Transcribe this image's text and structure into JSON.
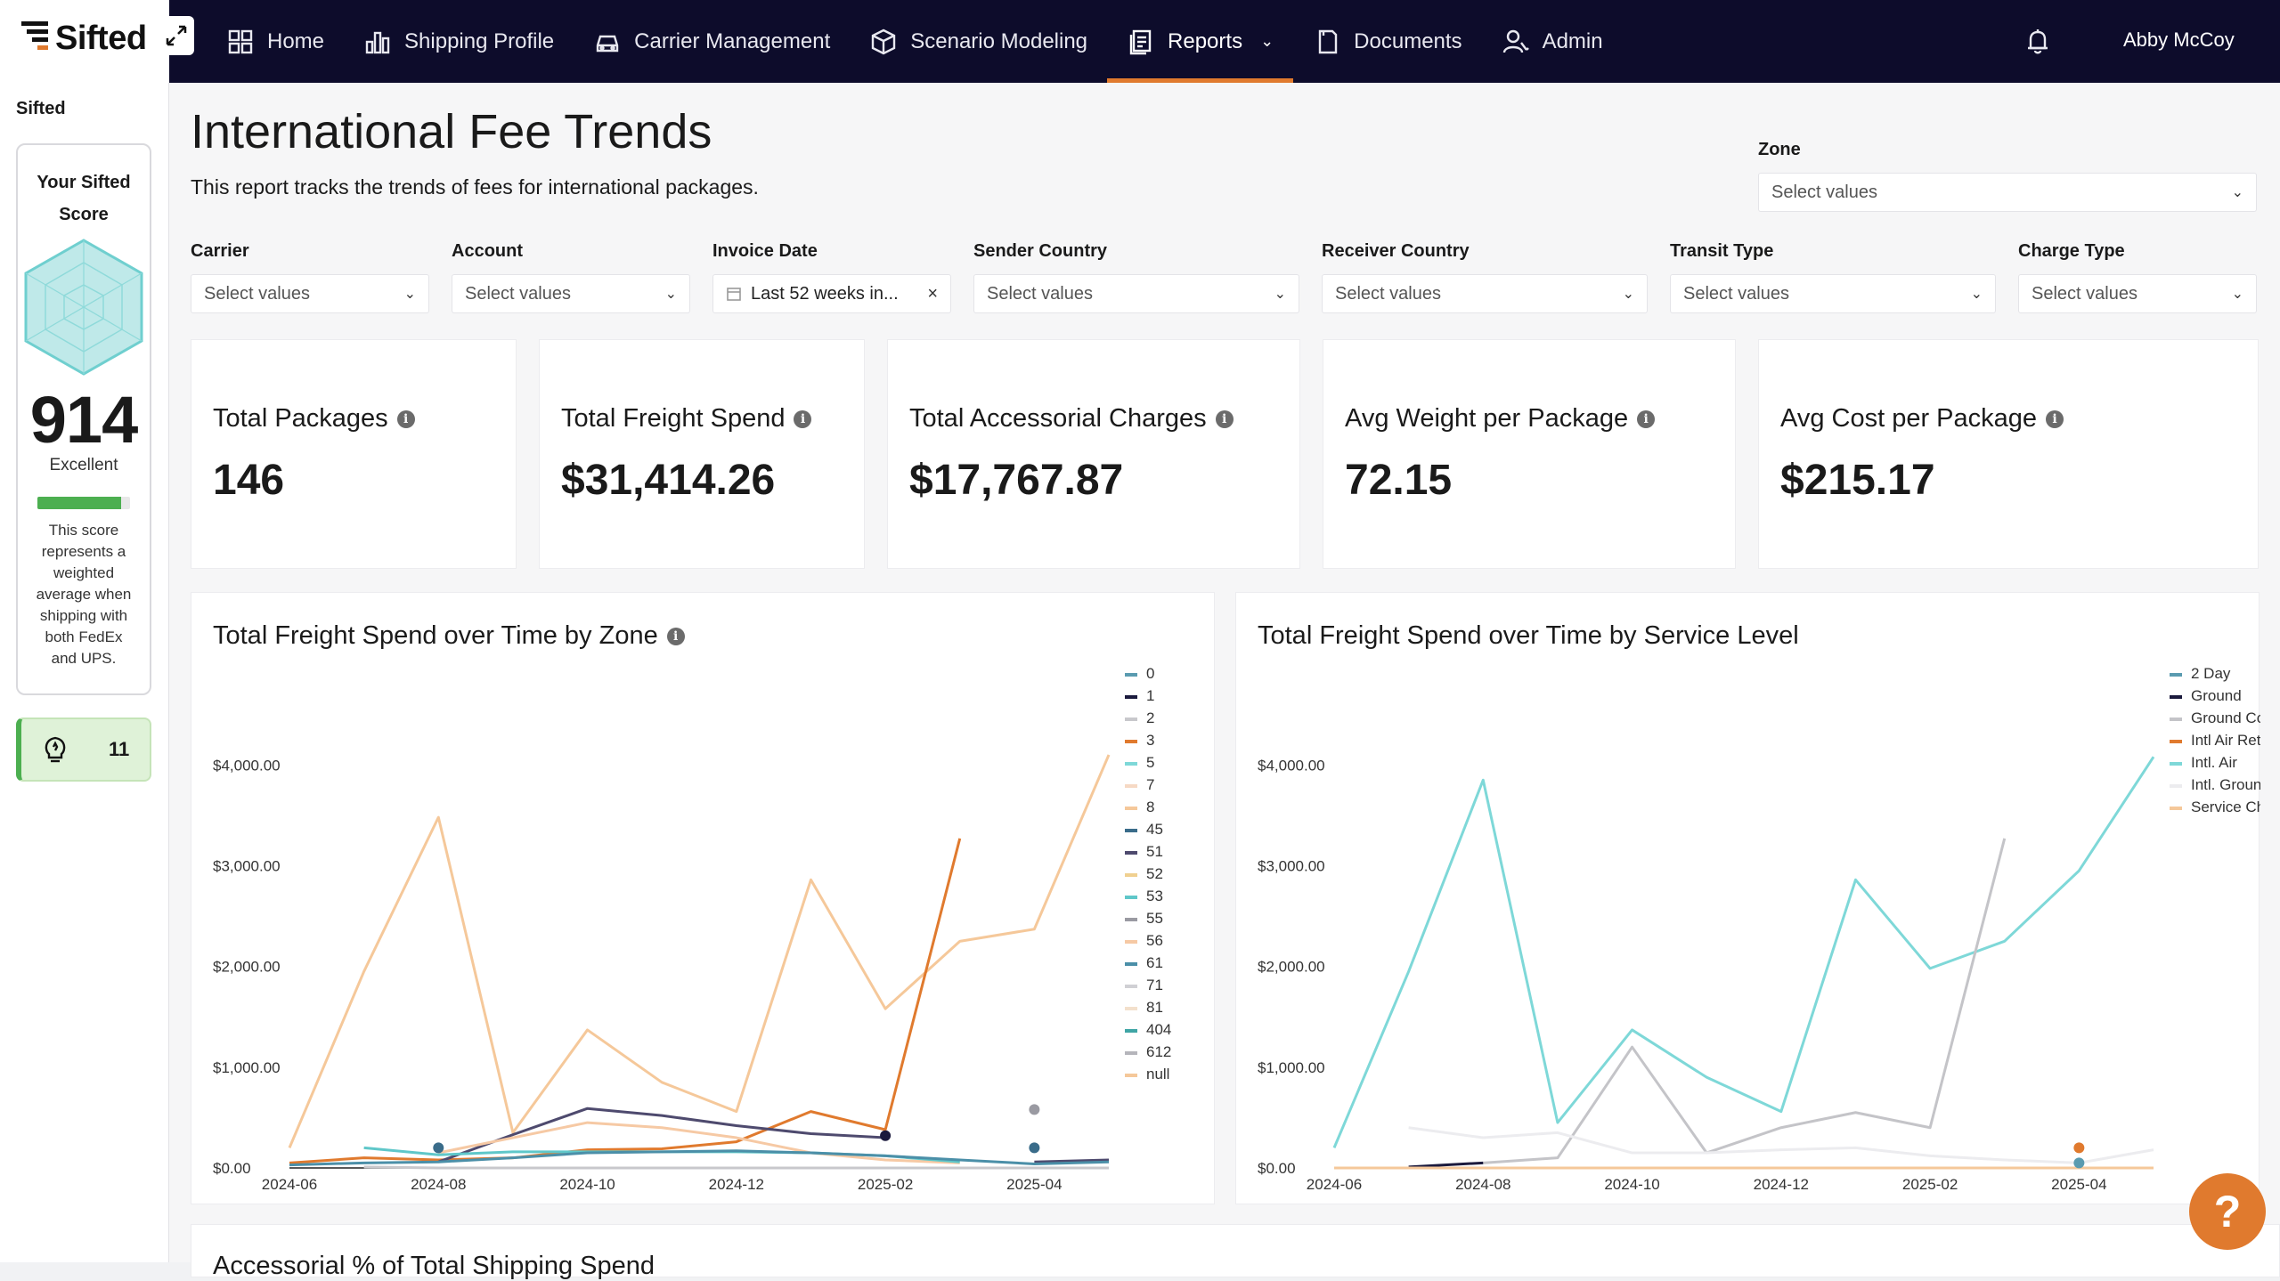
{
  "app": {
    "logo_text": "Sifted",
    "user_name": "Abby McCoy"
  },
  "nav": {
    "items": [
      {
        "label": "Home"
      },
      {
        "label": "Shipping Profile"
      },
      {
        "label": "Carrier Management"
      },
      {
        "label": "Scenario Modeling"
      },
      {
        "label": "Reports"
      },
      {
        "label": "Documents"
      },
      {
        "label": "Admin"
      }
    ],
    "active": "Reports",
    "reports_caret": "⌄"
  },
  "sidebar": {
    "title": "Sifted",
    "score_heading": "Your Sifted Score",
    "score_value": "914",
    "score_label": "Excellent",
    "score_fraction": 0.9,
    "score_description": "This score represents a weighted average when shipping with both FedEx and UPS.",
    "tips_count": "11"
  },
  "page": {
    "title": "International Fee Trends",
    "subtitle": "This report tracks the trends of fees for international packages."
  },
  "filters": {
    "zone": {
      "label": "Zone",
      "placeholder": "Select values"
    },
    "carrier": {
      "label": "Carrier",
      "placeholder": "Select values"
    },
    "account": {
      "label": "Account",
      "placeholder": "Select values"
    },
    "invoice_date": {
      "label": "Invoice Date",
      "value": "Last 52 weeks in...",
      "clear": "×"
    },
    "sender_country": {
      "label": "Sender Country",
      "placeholder": "Select values"
    },
    "receiver_country": {
      "label": "Receiver Country",
      "placeholder": "Select values"
    },
    "transit_type": {
      "label": "Transit Type",
      "placeholder": "Select values"
    },
    "charge_type": {
      "label": "Charge Type",
      "placeholder": "Select values"
    }
  },
  "kpis": [
    {
      "title": "Total Packages",
      "value": "146"
    },
    {
      "title": "Total Freight Spend",
      "value": "$31,414.26"
    },
    {
      "title": "Total Accessorial Charges",
      "value": "$17,767.87"
    },
    {
      "title": "Avg Weight per Package",
      "value": "72.15"
    },
    {
      "title": "Avg Cost per Package",
      "value": "$215.17"
    }
  ],
  "bottom_card": {
    "title": "Accessorial % of Total Shipping Spend"
  },
  "help": {
    "label": "?"
  },
  "chart_data": [
    {
      "type": "line",
      "title": "Total Freight Spend over Time by Zone",
      "x": [
        "2024-06",
        "2024-07",
        "2024-08",
        "2024-09",
        "2024-10",
        "2024-11",
        "2024-12",
        "2025-01",
        "2025-02",
        "2025-03",
        "2025-04",
        "2025-05"
      ],
      "x_tick_labels": [
        "2024-06",
        "2024-08",
        "2024-10",
        "2024-12",
        "2025-02",
        "2025-04"
      ],
      "y_ticks": [
        "$0.00",
        "$1,000.00",
        "$2,000.00",
        "$3,000.00",
        "$4,000.00"
      ],
      "ylim": [
        0,
        4400
      ],
      "legend": [
        "0",
        "1",
        "2",
        "3",
        "5",
        "7",
        "8",
        "45",
        "51",
        "52",
        "53",
        "55",
        "56",
        "61",
        "71",
        "81",
        "404",
        "612",
        "null"
      ],
      "series": [
        {
          "name": "8",
          "color": "#f5c89a",
          "values": [
            200,
            1950,
            3480,
            350,
            1370,
            850,
            560,
            2860,
            1580,
            2250,
            2370,
            4100
          ]
        },
        {
          "name": "3",
          "color": "#e07a2e",
          "values": [
            50,
            100,
            80,
            100,
            180,
            190,
            260,
            560,
            380,
            3270,
            null,
            null
          ]
        },
        {
          "name": "51",
          "color": "#4e4a6e",
          "values": [
            null,
            null,
            60,
            330,
            590,
            520,
            420,
            340,
            300,
            null,
            60,
            80
          ]
        },
        {
          "name": "7",
          "color": "#f6c9a4",
          "values": [
            null,
            null,
            150,
            300,
            450,
            400,
            300,
            150,
            80,
            50,
            null,
            null
          ]
        },
        {
          "name": "5",
          "color": "#5fc7c9",
          "values": [
            null,
            200,
            130,
            160,
            160,
            160,
            160,
            150,
            120,
            60,
            null,
            null
          ]
        },
        {
          "name": "0",
          "color": "#4b8fa8",
          "values": [
            30,
            50,
            60,
            100,
            150,
            160,
            170,
            150,
            120,
            80,
            40,
            60
          ]
        },
        {
          "name": "1",
          "color": "#1b1a3d",
          "values": [
            null,
            null,
            null,
            null,
            null,
            null,
            null,
            null,
            320,
            null,
            null,
            null
          ]
        },
        {
          "name": "55",
          "color": "#9a9aa2",
          "values": [
            null,
            null,
            null,
            null,
            null,
            null,
            null,
            null,
            null,
            null,
            580,
            null
          ]
        },
        {
          "name": "45",
          "color": "#3a6c8a",
          "values": [
            null,
            null,
            200,
            null,
            null,
            null,
            null,
            null,
            null,
            null,
            200,
            null
          ]
        },
        {
          "name": "2",
          "color": "#c8c8cc",
          "values": [
            null,
            10,
            0,
            0,
            0,
            0,
            0,
            0,
            0,
            0,
            0,
            0
          ]
        }
      ]
    },
    {
      "type": "line",
      "title": "Total Freight Spend over Time by Service Level",
      "x": [
        "2024-06",
        "2024-07",
        "2024-08",
        "2024-09",
        "2024-10",
        "2024-11",
        "2024-12",
        "2025-01",
        "2025-02",
        "2025-03",
        "2025-04",
        "2025-05"
      ],
      "x_tick_labels": [
        "2024-06",
        "2024-08",
        "2024-10",
        "2024-12",
        "2025-02",
        "2025-04"
      ],
      "y_ticks": [
        "$0.00",
        "$1,000.00",
        "$2,000.00",
        "$3,000.00",
        "$4,000.00"
      ],
      "ylim": [
        0,
        4400
      ],
      "legend": [
        "2 Day",
        "Ground",
        "Ground Com",
        "Intl Air Returns",
        "Intl. Air",
        "Intl. Ground",
        "Service Charge"
      ],
      "series": [
        {
          "name": "Intl. Air",
          "color": "#7ed8d8",
          "values": [
            200,
            1950,
            3850,
            450,
            1370,
            900,
            560,
            2860,
            1980,
            2250,
            2950,
            4080
          ]
        },
        {
          "name": "Ground Com",
          "color": "#c4c4c8",
          "values": [
            null,
            null,
            50,
            100,
            1200,
            150,
            400,
            550,
            400,
            3270,
            null,
            null
          ]
        },
        {
          "name": "Intl. Ground",
          "color": "#ececef",
          "values": [
            null,
            400,
            300,
            350,
            150,
            150,
            180,
            200,
            120,
            80,
            50,
            180
          ]
        },
        {
          "name": "Ground",
          "color": "#1b1a3d",
          "values": [
            null,
            10,
            50,
            null,
            null,
            null,
            null,
            null,
            null,
            null,
            null,
            null
          ]
        },
        {
          "name": "Service Charge",
          "color": "#f5c89a",
          "values": [
            0,
            0,
            0,
            0,
            0,
            0,
            0,
            0,
            0,
            0,
            0,
            0
          ]
        },
        {
          "name": "Intl Air Returns",
          "color": "#e07a2e",
          "values": [
            null,
            null,
            null,
            null,
            null,
            null,
            null,
            null,
            null,
            null,
            200,
            null
          ]
        },
        {
          "name": "2 Day",
          "color": "#5a9bb0",
          "values": [
            null,
            null,
            null,
            null,
            null,
            null,
            null,
            null,
            null,
            null,
            50,
            null
          ]
        }
      ]
    }
  ],
  "legend_colors": {
    "zone": [
      "#5a9bb0",
      "#1b1a3d",
      "#c8c8cc",
      "#e07a2e",
      "#7ed8d8",
      "#f6d9c4",
      "#f5c89a",
      "#3a6c8a",
      "#4e4a6e",
      "#f0d090",
      "#5fc7c9",
      "#9a9aa2",
      "#f6c9a4",
      "#4b8fa8",
      "#d0d0d4",
      "#f3e0cc",
      "#3fa5a5",
      "#b5b5bb",
      "#f5c89a"
    ],
    "service": [
      "#5a9bb0",
      "#1b1a3d",
      "#c4c4c8",
      "#e07a2e",
      "#7ed8d8",
      "#ececef",
      "#f5c89a"
    ]
  }
}
